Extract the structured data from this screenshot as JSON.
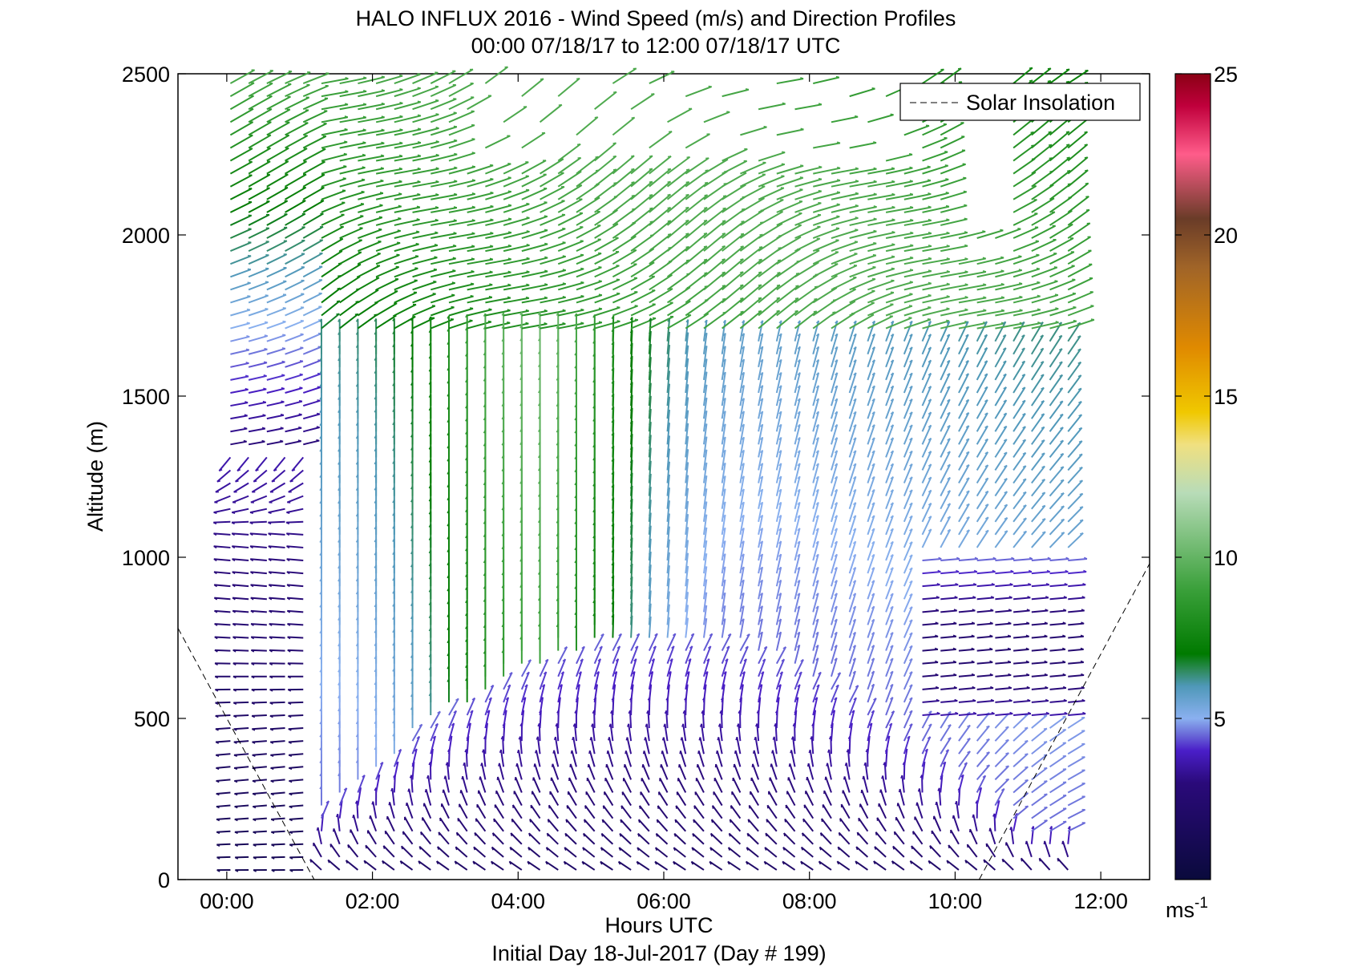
{
  "chart_data": {
    "type": "scatter",
    "chart_kind": "wind-barb quiver profile",
    "title": "HALO INFLUX 2016 - Wind Speed (m/s) and Direction Profiles",
    "subtitle": "00:00 07/18/17 to 12:00 07/18/17  UTC",
    "xlabel": "Hours UTC",
    "xlabel2": "Initial Day 18-Jul-2017 (Day # 199)",
    "ylabel": "Altitude (m)",
    "xlim_hours": [
      -0.67,
      12.67
    ],
    "ylim": [
      0,
      2500
    ],
    "x_tick_labels": [
      "00:00",
      "02:00",
      "04:00",
      "06:00",
      "08:00",
      "10:00",
      "12:00"
    ],
    "x_tick_values": [
      0,
      2,
      4,
      6,
      8,
      10,
      12
    ],
    "y_tick_labels": [
      "0",
      "500",
      "1000",
      "1500",
      "2000",
      "2500"
    ],
    "y_tick_values": [
      0,
      500,
      1000,
      1500,
      2000,
      2500
    ],
    "legend": {
      "label": "Solar Insolation",
      "placement": "top-right",
      "line_style": "dashed",
      "color": "#000000"
    },
    "colorbar": {
      "min": 0,
      "max": 25,
      "tick_labels": [
        "5",
        "10",
        "15",
        "20",
        "25"
      ],
      "tick_values": [
        5,
        10,
        15,
        20,
        25
      ],
      "units_label": "ms",
      "units_exponent": "-1",
      "colors": [
        "#0a0a3c",
        "#2a0a7a",
        "#4a1ec8",
        "#6a6ad8",
        "#8ab0f0",
        "#4f98b8",
        "#2e8a5a",
        "#007a00",
        "#3aa03a",
        "#b8dcb8",
        "#f0e080",
        "#f0c800",
        "#e08a00",
        "#a06428",
        "#6a3c28",
        "#ff5c8a",
        "#c0003c",
        "#8a0014"
      ],
      "color_stops": [
        0,
        3,
        4,
        4.5,
        5,
        6,
        6.5,
        7,
        9,
        12,
        13.5,
        14.5,
        16.5,
        19,
        20.5,
        22.5,
        24,
        25
      ]
    },
    "solar_insolation": {
      "points_hours_altitude": [
        [
          -0.67,
          780
        ],
        [
          1.2,
          0
        ],
        [
          10.33,
          0
        ],
        [
          12.67,
          980
        ]
      ]
    },
    "wind_field": {
      "x_hours_start": 0.05,
      "x_hours_end": 11.75,
      "x_hours_step": 0.25,
      "y_alt_start": 30,
      "y_alt_end": 2480,
      "y_alt_step": 40,
      "description_of_regimes": [
        {
          "hours": [
            0,
            1.3
          ],
          "alt": [
            0,
            1350
          ],
          "speed_ms": [
            1,
            4
          ],
          "direction": "from east, pointing west"
        },
        {
          "hours": [
            0,
            1.3
          ],
          "alt": [
            1350,
            2500
          ],
          "speed_ms": [
            3,
            10
          ],
          "direction": "toward north-east"
        },
        {
          "hours": [
            1.3,
            6.5
          ],
          "alt": [
            0,
            700
          ],
          "speed_ms": [
            2,
            5
          ],
          "direction": "veering with height"
        },
        {
          "hours": [
            3.3,
            5.5
          ],
          "alt": [
            700,
            1600
          ],
          "speed_ms": [
            6,
            10
          ],
          "direction": "toward north"
        },
        {
          "hours": [
            6.5,
            11.8
          ],
          "alt": [
            1500,
            2300
          ],
          "speed_ms": [
            6,
            10
          ],
          "direction": "toward north-east"
        },
        {
          "hours": [
            9.5,
            11.8
          ],
          "alt": [
            500,
            1000
          ],
          "speed_ms": [
            4,
            6
          ],
          "direction": "toward east"
        }
      ]
    }
  }
}
